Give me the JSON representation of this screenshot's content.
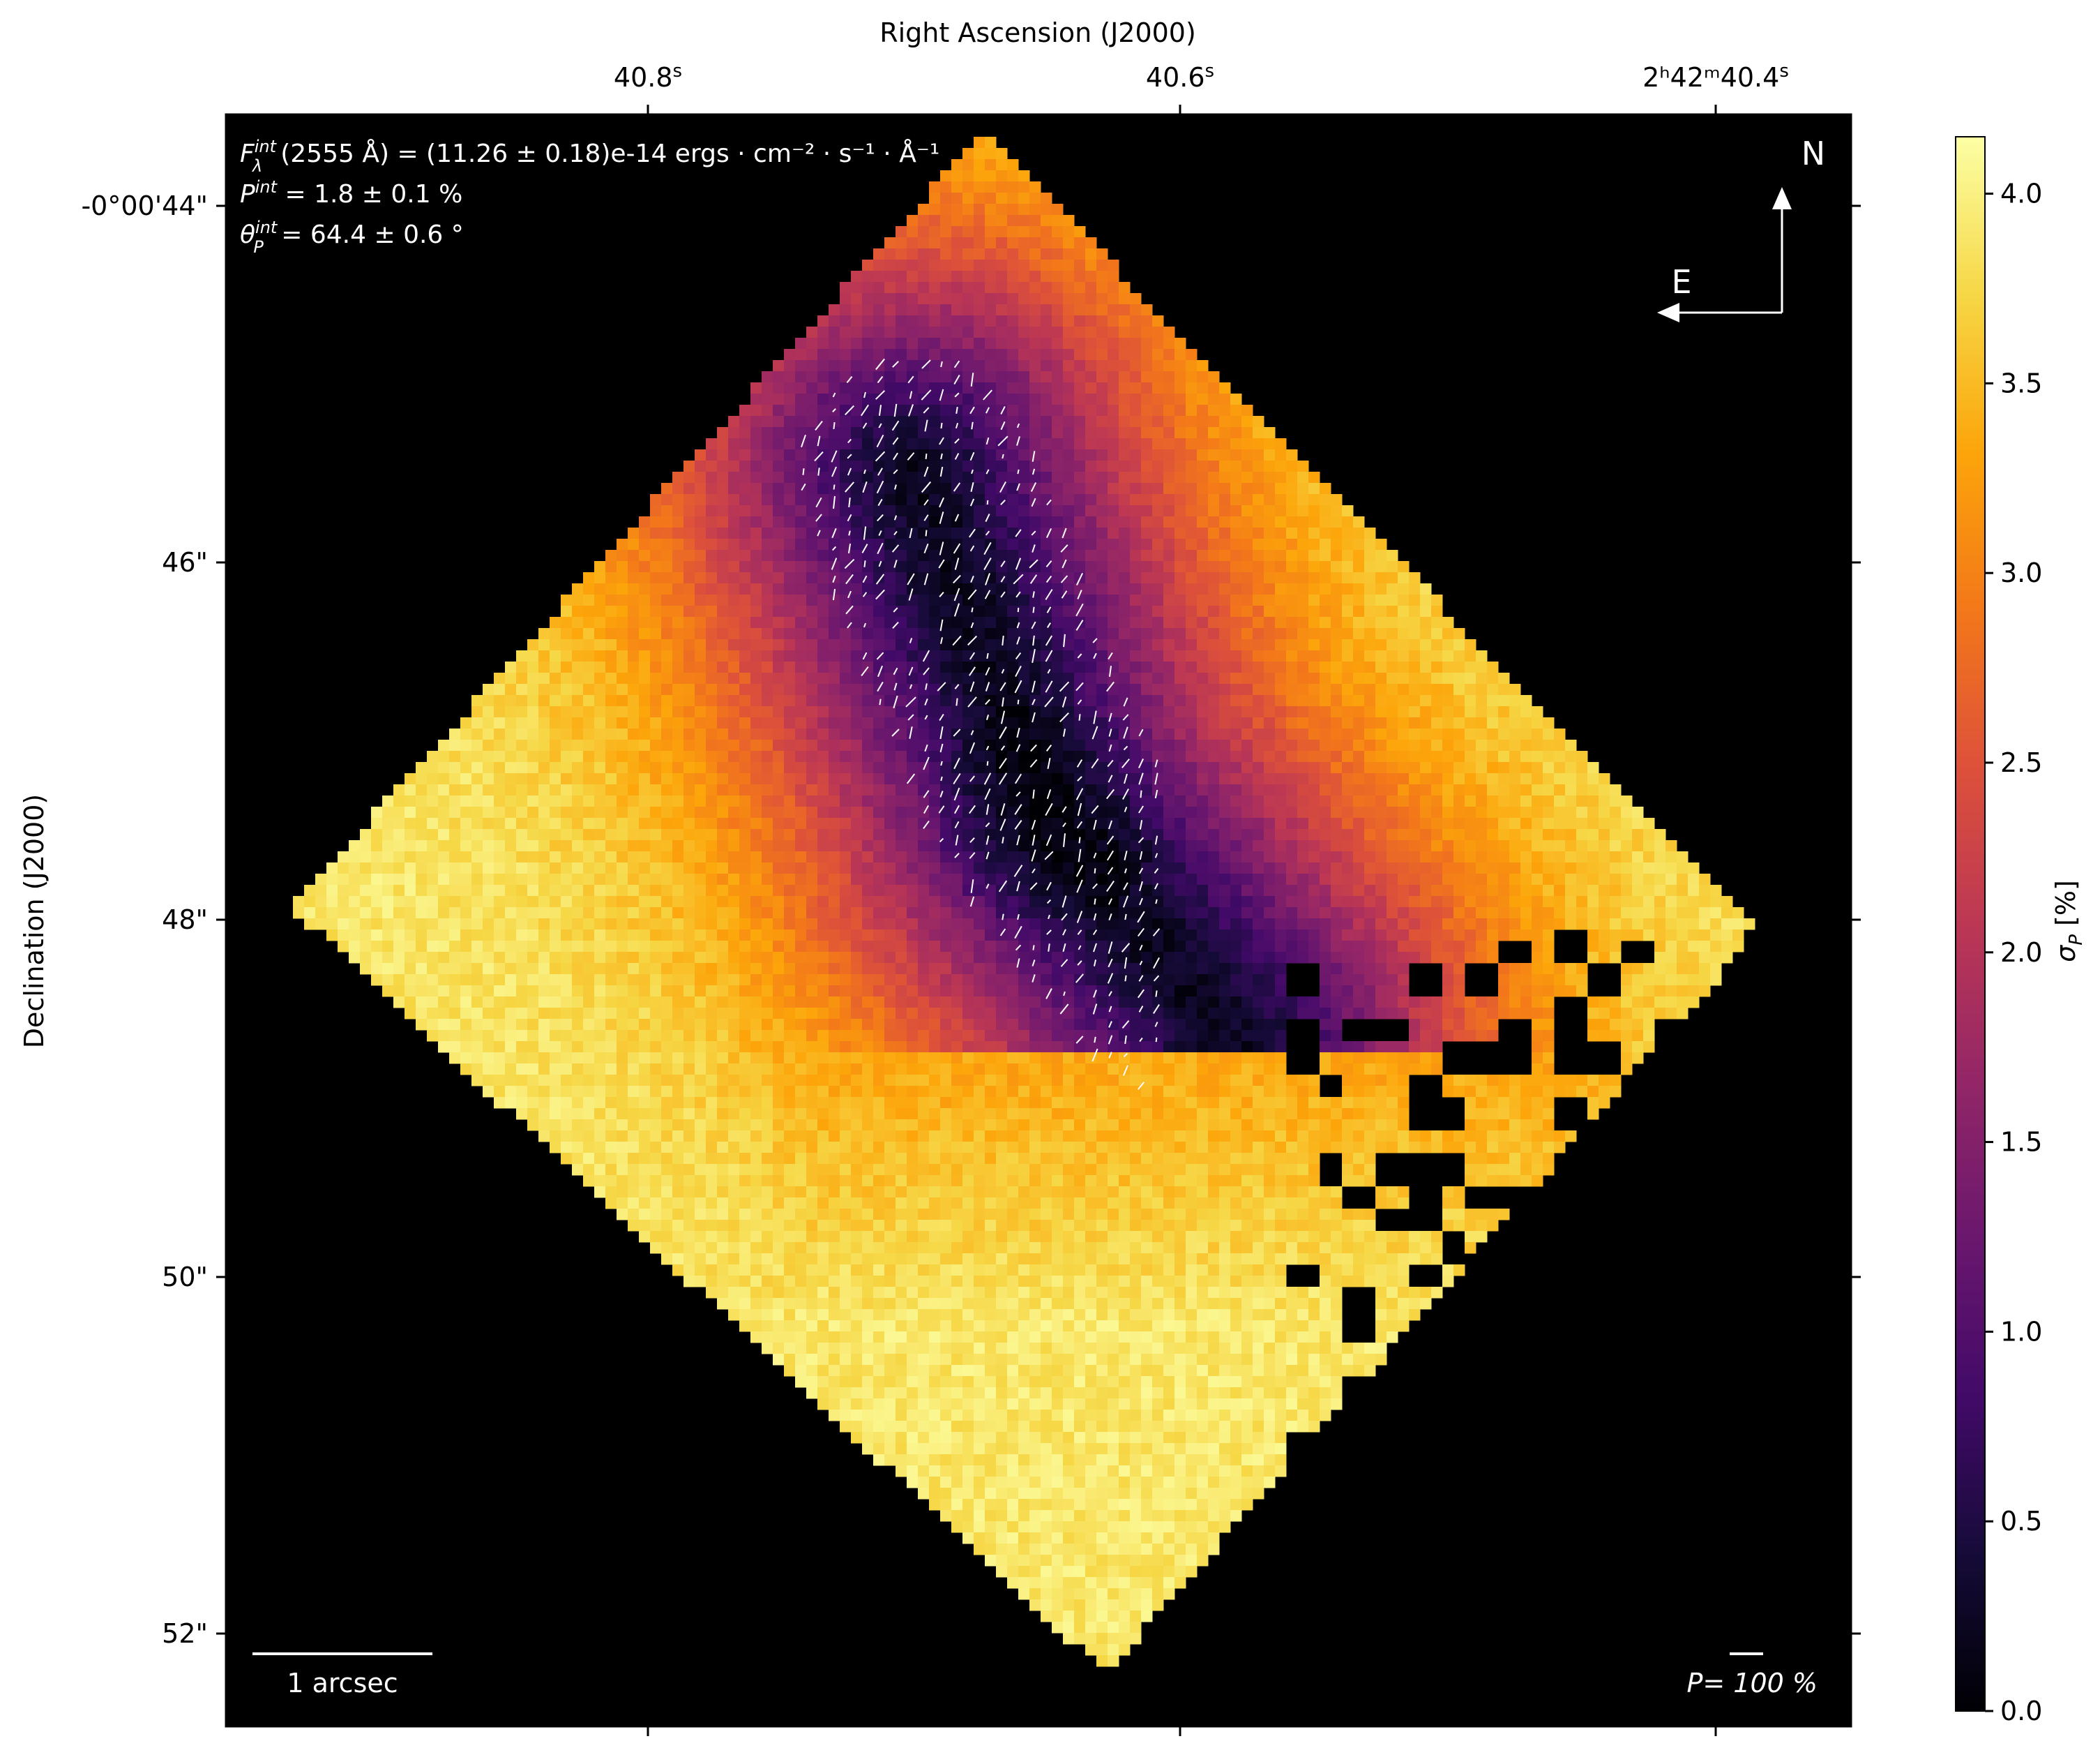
{
  "figure": {
    "xlabel_top": "Right Ascension (J2000)",
    "ylabel": "Declination (J2000)",
    "x_ticks": [
      {
        "main": "40.8",
        "sup": "s"
      },
      {
        "main": "40.6",
        "sup": "s"
      },
      {
        "main": "2ʰ42ᵐ40.4",
        "sup": "s"
      }
    ],
    "y_ticks": [
      "-0°00'44\"",
      "46\"",
      "48\"",
      "50\"",
      "52\""
    ],
    "annotations": {
      "flux": {
        "sym": "F",
        "sup": "int",
        "sub": "λ",
        "rest": "(2555 Å) = (11.26 ± 0.18)e-14 ergs · cm⁻² · s⁻¹ · Å⁻¹"
      },
      "pol": {
        "sym": "P",
        "sup": "int",
        "rest": " = 1.8 ± 0.1 %"
      },
      "angle": {
        "sym": "θ",
        "sub": "P",
        "sup": "int",
        "rest": " = 64.4 ± 0.6 °"
      }
    },
    "compass": {
      "north": "N",
      "east": "E"
    },
    "scalebar_label": "1 arcsec",
    "vector_scale_label": "P= 100 %"
  },
  "colorbar": {
    "label_sym": "σ",
    "label_sub": "P",
    "label_rest": " [%]",
    "ticks": [
      "0.0",
      "0.5",
      "1.0",
      "1.5",
      "2.0",
      "2.5",
      "3.0",
      "3.5",
      "4.0"
    ],
    "tick_values": [
      0.0,
      0.5,
      1.0,
      1.5,
      2.0,
      2.5,
      3.0,
      3.5,
      4.0
    ],
    "range": [
      0.0,
      4.15
    ],
    "colormap": "inferno"
  },
  "chart_data": {
    "type": "heatmap",
    "title": "",
    "xlabel": "Right Ascension (J2000)",
    "ylabel": "Declination (J2000)",
    "colorbar_label": "σP [%]",
    "clim": [
      0.0,
      4.15
    ],
    "x_tick_labels": [
      "40.8s",
      "40.6s",
      "2h42m40.4s"
    ],
    "y_tick_labels": [
      "-0°00'44\"",
      "46\"",
      "48\"",
      "50\"",
      "52\""
    ],
    "integrated": {
      "F_lambda_2555A": "(11.26 ± 0.18)e-14 ergs·cm⁻²·s⁻¹·Å⁻¹",
      "P_percent": 1.8,
      "P_err": 0.1,
      "theta_deg": 64.4,
      "theta_err": 0.6
    },
    "map_features": [
      {
        "description": "low-σP valley center",
        "ra_s": 40.65,
        "dec_arcsec": 47.4,
        "value": 0.2
      },
      {
        "description": "low-σP arm north",
        "ra_s": 40.7,
        "dec_arcsec": 45.5,
        "value": 0.8
      },
      {
        "description": "low-σP arm south",
        "ra_s": 40.58,
        "dec_arcsec": 48.7,
        "value": 0.8
      },
      {
        "description": "north tip",
        "ra_s": 40.65,
        "dec_arcsec": 43.5,
        "value": 3.1
      },
      {
        "description": "east edge",
        "ra_s": 40.86,
        "dec_arcsec": 46.5,
        "value": 3.1
      },
      {
        "description": "west edge",
        "ra_s": 40.44,
        "dec_arcsec": 48.0,
        "value": 3.6
      },
      {
        "description": "south region",
        "ra_s": 40.62,
        "dec_arcsec": 50.5,
        "value": 3.9
      }
    ]
  }
}
